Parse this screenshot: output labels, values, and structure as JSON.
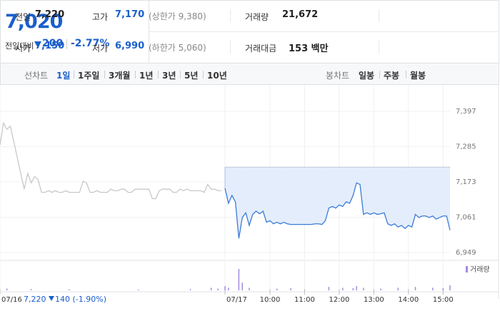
{
  "quote": {
    "price": "7,020",
    "change_label": "전일대비",
    "change": "200",
    "change_rate": "-2.77%"
  },
  "stats": {
    "rows": [
      [
        {
          "label": "전일",
          "value": "7,220"
        },
        {
          "label": "고가",
          "value": "7,170",
          "note": "(상한가 9,380)",
          "color": "#1a5fcc"
        },
        {
          "label": "거래량",
          "value": "21,672"
        }
      ],
      [
        {
          "label": "시가",
          "value": "7,150",
          "color": "#1a5fcc"
        },
        {
          "label": "저가",
          "value": "6,990",
          "note": "(하한가 5,060)",
          "color": "#1a5fcc"
        },
        {
          "label": "거래대금",
          "value": "153 백만"
        }
      ]
    ]
  },
  "tabs": {
    "line_label": "선차트",
    "line_periods": [
      "1일",
      "1주일",
      "3개월",
      "1년",
      "3년",
      "5년",
      "10년"
    ],
    "active": 0,
    "candle_label": "봉차트",
    "candle_periods": [
      "일봉",
      "주봉",
      "월봉"
    ]
  },
  "prev_summary": {
    "close": "7,220",
    "change": "140",
    "rate": "(-1.90%)"
  },
  "chart_data": {
    "type": "line",
    "previous_close": 7220,
    "ylim": [
      6924,
      7481
    ],
    "yticks": [
      {
        "value": 7397,
        "label": "7,397"
      },
      {
        "value": 7285,
        "label": "7,285"
      },
      {
        "value": 7173,
        "label": "7,173"
      },
      {
        "value": 7061,
        "label": "7,061"
      },
      {
        "value": 6949,
        "label": "6,949"
      }
    ],
    "xlim": [
      0,
      130
    ],
    "xticks": [
      {
        "value": 0,
        "label": "07/16"
      },
      {
        "value": 65,
        "label": "07/17"
      },
      {
        "value": 78,
        "label": "10:00"
      },
      {
        "value": 88,
        "label": "11:00"
      },
      {
        "value": 98,
        "label": "12:00"
      },
      {
        "value": 108,
        "label": "13:00"
      },
      {
        "value": 118,
        "label": "14:00"
      },
      {
        "value": 128,
        "label": "15:00"
      }
    ],
    "grid": true,
    "series": [
      {
        "color": "#c8c8c8",
        "x": [
          0,
          1,
          2,
          3,
          4,
          5,
          6,
          7,
          8,
          9,
          10,
          11,
          12,
          13,
          14,
          15,
          16,
          17,
          18,
          19,
          20,
          21,
          22,
          23,
          24,
          25,
          26,
          27,
          28,
          29,
          30,
          31,
          32,
          33,
          34,
          35,
          36,
          37,
          38,
          39,
          40,
          41,
          42,
          43,
          44,
          45,
          46,
          47,
          48,
          49,
          50,
          51,
          52,
          53,
          54,
          55,
          56,
          57,
          58,
          59,
          60,
          61,
          62,
          63,
          64
        ],
        "values": [
          7290,
          7360,
          7340,
          7350,
          7300,
          7250,
          7200,
          7150,
          7200,
          7170,
          7190,
          7180,
          7140,
          7140,
          7145,
          7140,
          7145,
          7140,
          7140,
          7145,
          7140,
          7140,
          7140,
          7140,
          7175,
          7170,
          7140,
          7140,
          7145,
          7140,
          7140,
          7140,
          7150,
          7145,
          7145,
          7150,
          7150,
          7140,
          7140,
          7150,
          7150,
          7150,
          7150,
          7150,
          7120,
          7120,
          7145,
          7150,
          7150,
          7150,
          7140,
          7140,
          7150,
          7145,
          7150,
          7145,
          7145,
          7145,
          7145,
          7140,
          7165,
          7150,
          7150,
          7145,
          7145
        ]
      },
      {
        "color": "#3b7bd8",
        "fill": "#e4edfb",
        "x": [
          65,
          66,
          67,
          68,
          69,
          70,
          71,
          72,
          73,
          74,
          75,
          76,
          77,
          78,
          79,
          80,
          81,
          82,
          83,
          84,
          85,
          86,
          87,
          88,
          89,
          90,
          91,
          92,
          93,
          94,
          95,
          96,
          97,
          98,
          99,
          100,
          101,
          102,
          103,
          104,
          105,
          106,
          107,
          108,
          109,
          110,
          111,
          112,
          113,
          114,
          115,
          116,
          117,
          118,
          119,
          120,
          121,
          122,
          123,
          124,
          125,
          126,
          127,
          128,
          129,
          130
        ],
        "values": [
          7153,
          7105,
          7130,
          7110,
          6994,
          7060,
          7075,
          7035,
          7070,
          7080,
          7072,
          7080,
          7045,
          7050,
          7040,
          7045,
          7040,
          7045,
          7040,
          7038,
          7038,
          7038,
          7038,
          7038,
          7038,
          7038,
          7040,
          7040,
          7038,
          7050,
          7090,
          7095,
          7090,
          7100,
          7095,
          7110,
          7105,
          7130,
          7170,
          7165,
          7070,
          7075,
          7070,
          7075,
          7070,
          7072,
          7075,
          7040,
          7035,
          7040,
          7030,
          7035,
          7025,
          7035,
          7030,
          7070,
          7060,
          7065,
          7065,
          7060,
          7065,
          7055,
          7060,
          7065,
          7065,
          7020
        ]
      }
    ],
    "volume": {
      "name": "거래량",
      "color": "#a58be0",
      "ylim": [
        0,
        3000
      ],
      "x": [
        2,
        9,
        20,
        40,
        55,
        61,
        63,
        65,
        66,
        69,
        70,
        72,
        80,
        84,
        95,
        99,
        102,
        103,
        105,
        110,
        115,
        120,
        125,
        128,
        130
      ],
      "values": [
        200,
        150,
        120,
        100,
        150,
        300,
        200,
        500,
        300,
        2500,
        900,
        300,
        200,
        250,
        400,
        300,
        250,
        500,
        300,
        200,
        300,
        400,
        300,
        250,
        600
      ]
    }
  }
}
